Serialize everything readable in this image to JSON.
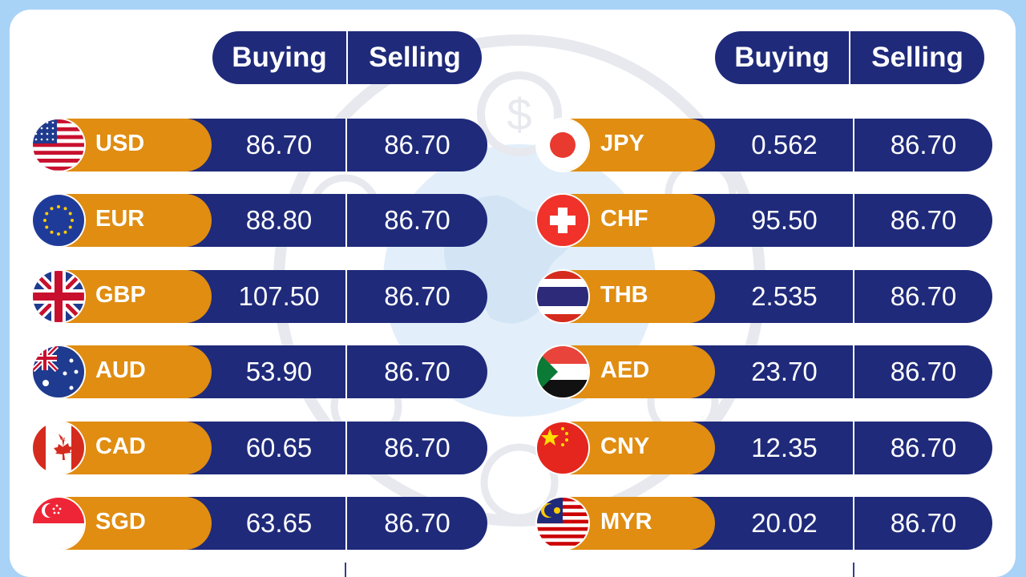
{
  "headers": {
    "buying_label": "Buying",
    "selling_label": "Selling"
  },
  "left_rows": [
    {
      "code": "USD",
      "buying": "86.70",
      "selling": "86.70",
      "flag": "us-flag-icon"
    },
    {
      "code": "EUR",
      "buying": "88.80",
      "selling": "86.70",
      "flag": "eu-flag-icon"
    },
    {
      "code": "GBP",
      "buying": "107.50",
      "selling": "86.70",
      "flag": "uk-flag-icon"
    },
    {
      "code": "AUD",
      "buying": "53.90",
      "selling": "86.70",
      "flag": "australia-flag-icon"
    },
    {
      "code": "CAD",
      "buying": "60.65",
      "selling": "86.70",
      "flag": "canada-flag-icon"
    },
    {
      "code": "SGD",
      "buying": "63.65",
      "selling": "86.70",
      "flag": "singapore-flag-icon"
    }
  ],
  "right_rows": [
    {
      "code": "JPY",
      "buying": "0.562",
      "selling": "86.70",
      "flag": "japan-flag-icon"
    },
    {
      "code": "CHF",
      "buying": "95.50",
      "selling": "86.70",
      "flag": "switzerland-flag-icon"
    },
    {
      "code": "THB",
      "buying": "2.535",
      "selling": "86.70",
      "flag": "thailand-flag-icon"
    },
    {
      "code": "AED",
      "buying": "23.70",
      "selling": "86.70",
      "flag": "uae-flag-icon"
    },
    {
      "code": "CNY",
      "buying": "12.35",
      "selling": "86.70",
      "flag": "china-flag-icon"
    },
    {
      "code": "MYR",
      "buying": "20.02",
      "selling": "86.70",
      "flag": "malaysia-flag-icon"
    }
  ],
  "colors": {
    "background": "#a9d2f7",
    "navy": "#1f2a7a",
    "orange": "#e08d12"
  }
}
